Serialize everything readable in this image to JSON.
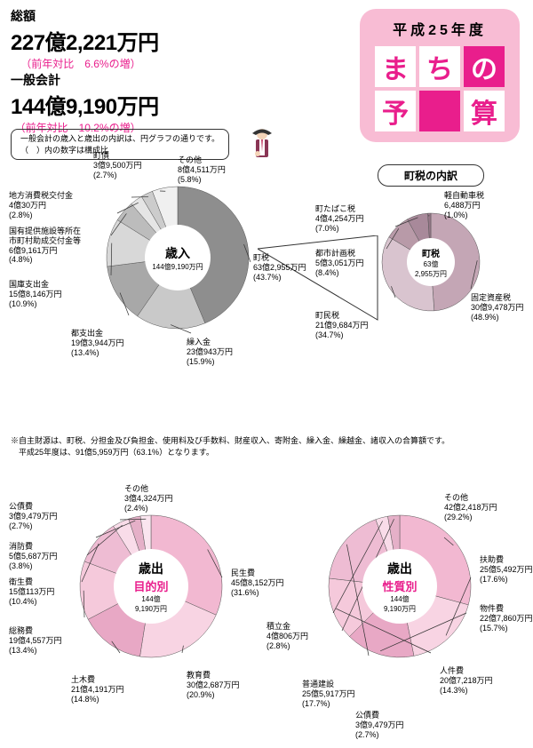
{
  "header": {
    "total_label": "総額",
    "total_value": "227億2,221万円",
    "total_comparison": "（前年対比　6.6%の増）",
    "general_label": "一般会計",
    "general_value": "144億9,190万円",
    "general_comparison": "（前年対比　10.2%の増）"
  },
  "badge": {
    "year": "平成25年度",
    "cells": [
      "ま",
      "ち",
      "の",
      "予",
      "",
      "算"
    ]
  },
  "note": {
    "line1": "一般会計の歳入と歳出の内訳は、円グラフの通りです。",
    "line2": "（　）内の数字は構成比"
  },
  "revenue_chart": {
    "type": "pie",
    "center_title": "歳入",
    "center_sub": "144億9,190万円",
    "colors_bg": "#ffffff",
    "slices": [
      {
        "label": "町税",
        "amount": "63億2,955万円",
        "pct": "(43.7%)",
        "value": 43.7,
        "color": "#8e8e8e"
      },
      {
        "label": "繰入金",
        "amount": "23億943万円",
        "pct": "(15.9%)",
        "value": 15.9,
        "color": "#c9c9c9"
      },
      {
        "label": "都支出金",
        "amount": "19億3,944万円",
        "pct": "(13.4%)",
        "value": 13.4,
        "color": "#a8a8a8"
      },
      {
        "label": "国庫支出金",
        "amount": "15億8,146万円",
        "pct": "(10.9%)",
        "value": 10.9,
        "color": "#d8d8d8"
      },
      {
        "label": "国有提供施設等所在\n市町村助成交付金等",
        "amount": "6億9,161万円",
        "pct": "(4.8%)",
        "value": 4.8,
        "color": "#bcbcbc"
      },
      {
        "label": "地方消費税交付金",
        "amount": "4億30万円",
        "pct": "(2.8%)",
        "value": 2.8,
        "color": "#e5e5e5"
      },
      {
        "label": "町債",
        "amount": "3億9,500万円",
        "pct": "(2.7%)",
        "value": 2.7,
        "color": "#cccccc"
      },
      {
        "label": "その他",
        "amount": "8億4,511万円",
        "pct": "(5.8%)",
        "value": 5.8,
        "color": "#f0f0f0"
      }
    ]
  },
  "tax_breakdown": {
    "type": "donut",
    "title": "町税の内訳",
    "center_title": "町税",
    "center_amount": "63億",
    "center_sub": "2,955万円",
    "slices": [
      {
        "label": "固定資産税",
        "amount": "30億9,478万円",
        "pct": "(48.9%)",
        "value": 48.9,
        "color": "#c4a6b5"
      },
      {
        "label": "町民税",
        "amount": "21億9,684万円",
        "pct": "(34.7%)",
        "value": 34.7,
        "color": "#d9c4cf"
      },
      {
        "label": "都市計画税",
        "amount": "5億3,051万円",
        "pct": "(8.4%)",
        "value": 8.4,
        "color": "#b89aa8"
      },
      {
        "label": "町たばこ税",
        "amount": "4億4,254万円",
        "pct": "(7.0%)",
        "value": 7.0,
        "color": "#a8899a"
      },
      {
        "label": "軽自動車税",
        "amount": "6,488万円",
        "pct": "(1.0%)",
        "value": 1.0,
        "color": "#967888"
      }
    ]
  },
  "footnote": {
    "line1": "※自主財源は、町税、分担金及び負担金、使用料及び手数料、財産収入、寄附金、繰入金、繰越金、諸収入の合算額です。",
    "line2": "　平成25年度は、91億5,959万円（63.1%）となります。"
  },
  "expense_purpose": {
    "type": "pie",
    "center_title": "歳出",
    "center_cat": "目的別",
    "center_sub": "144億\n9,190万円",
    "slices": [
      {
        "label": "民生費",
        "amount": "45億8,152万円",
        "pct": "(31.6%)",
        "value": 31.6,
        "color": "#f2b8d1"
      },
      {
        "label": "教育費",
        "amount": "30億2,687万円",
        "pct": "(20.9%)",
        "value": 20.9,
        "color": "#f8d4e3"
      },
      {
        "label": "土木費",
        "amount": "21億4,191万円",
        "pct": "(14.8%)",
        "value": 14.8,
        "color": "#e8a8c5"
      },
      {
        "label": "総務費",
        "amount": "19億4,557万円",
        "pct": "(13.4%)",
        "value": 13.4,
        "color": "#f5c9db"
      },
      {
        "label": "衛生費",
        "amount": "15億113万円",
        "pct": "(10.4%)",
        "value": 10.4,
        "color": "#eebcd3"
      },
      {
        "label": "消防費",
        "amount": "5億5,687万円",
        "pct": "(3.8%)",
        "value": 3.8,
        "color": "#f9dce9"
      },
      {
        "label": "公債費",
        "amount": "3億9,479万円",
        "pct": "(2.7%)",
        "value": 2.7,
        "color": "#e5b0c8"
      },
      {
        "label": "その他",
        "amount": "3億4,324万円",
        "pct": "(2.4%)",
        "value": 2.4,
        "color": "#fae5ef"
      }
    ]
  },
  "expense_nature": {
    "type": "pie",
    "center_title": "歳出",
    "center_cat": "性質別",
    "center_sub": "144億\n9,190万円",
    "slices": [
      {
        "label": "その他",
        "amount": "42億2,418万円",
        "pct": "(29.2%)",
        "value": 29.2,
        "color": "#f2b8d1"
      },
      {
        "label": "扶助費",
        "amount": "25億5,492万円",
        "pct": "(17.6%)",
        "value": 17.6,
        "color": "#f8d4e3"
      },
      {
        "label": "物件費",
        "amount": "22億7,860万円",
        "pct": "(15.7%)",
        "value": 15.7,
        "color": "#e8a8c5"
      },
      {
        "label": "人件費",
        "amount": "20億7,218万円",
        "pct": "(14.3%)",
        "value": 14.3,
        "color": "#f5c9db"
      },
      {
        "label": "普通建設",
        "amount": "25億5,917万円",
        "pct": "(17.7%)",
        "value": 17.7,
        "color": "#eebcd3"
      },
      {
        "label": "積立金",
        "amount": "4億806万円",
        "pct": "(2.8%)",
        "value": 2.8,
        "color": "#f9dce9"
      },
      {
        "label": "公債費",
        "amount": "3億9,479万円",
        "pct": "(2.7%)",
        "value": 2.7,
        "color": "#e5b0c8"
      }
    ]
  }
}
